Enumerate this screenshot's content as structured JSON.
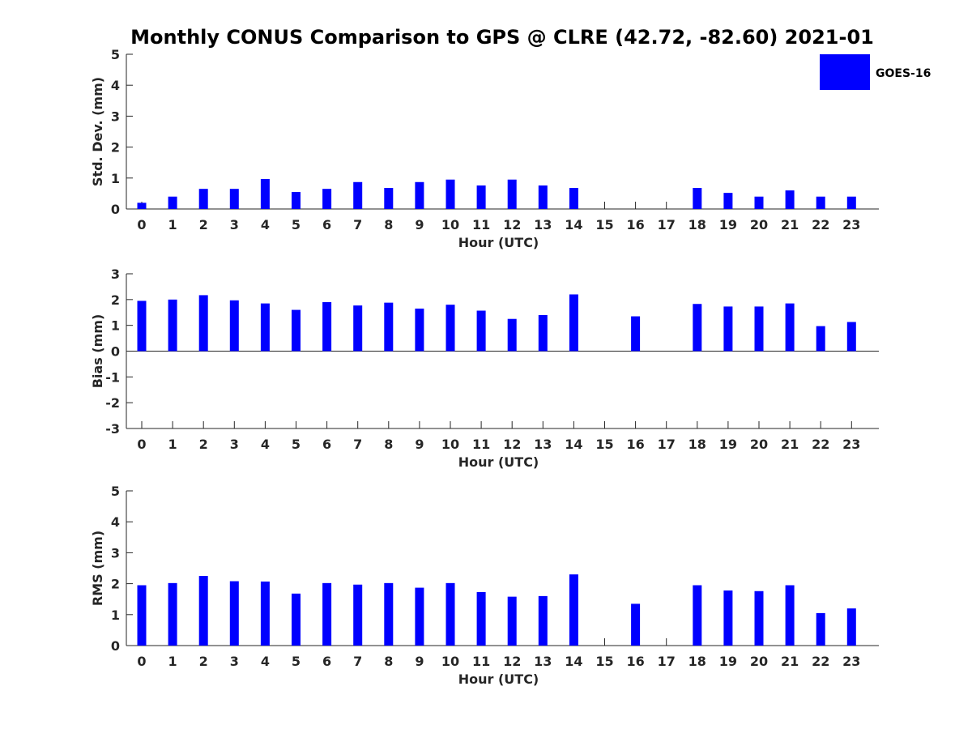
{
  "title": "Monthly CONUS Comparison to GPS @ CLRE (42.72, -82.60) 2021-01",
  "legend": {
    "label": "GOES-16",
    "color": "#0000ff",
    "position": "top-right"
  },
  "chart_data": [
    {
      "type": "bar",
      "xlabel": "Hour (UTC)",
      "ylabel": "Std. Dev. (mm)",
      "ylim": [
        0,
        5
      ],
      "yticks": [
        0,
        1,
        2,
        3,
        4,
        5
      ],
      "categories": [
        "0",
        "1",
        "2",
        "3",
        "4",
        "5",
        "6",
        "7",
        "8",
        "9",
        "10",
        "11",
        "12",
        "13",
        "14",
        "15",
        "16",
        "17",
        "18",
        "19",
        "20",
        "21",
        "22",
        "23"
      ],
      "series": [
        {
          "name": "GOES-16",
          "color": "#0000ff",
          "values": [
            0.2,
            0.4,
            0.65,
            0.65,
            0.97,
            0.55,
            0.65,
            0.87,
            0.68,
            0.87,
            0.95,
            0.76,
            0.95,
            0.76,
            0.68,
            null,
            null,
            null,
            0.68,
            0.52,
            0.4,
            0.6,
            0.4,
            0.4
          ]
        }
      ],
      "grid": false
    },
    {
      "type": "bar",
      "xlabel": "Hour (UTC)",
      "ylabel": "Bias (mm)",
      "ylim": [
        -3,
        3
      ],
      "yticks": [
        -3,
        -2,
        -1,
        0,
        1,
        2,
        3
      ],
      "categories": [
        "0",
        "1",
        "2",
        "3",
        "4",
        "5",
        "6",
        "7",
        "8",
        "9",
        "10",
        "11",
        "12",
        "13",
        "14",
        "15",
        "16",
        "17",
        "18",
        "19",
        "20",
        "21",
        "22",
        "23"
      ],
      "series": [
        {
          "name": "GOES-16",
          "color": "#0000ff",
          "values": [
            1.95,
            2.0,
            2.17,
            1.97,
            1.85,
            1.6,
            1.9,
            1.77,
            1.88,
            1.65,
            1.8,
            1.57,
            1.25,
            1.4,
            2.2,
            null,
            1.35,
            null,
            1.83,
            1.73,
            1.73,
            1.85,
            0.97,
            1.13
          ]
        }
      ],
      "grid": false
    },
    {
      "type": "bar",
      "xlabel": "Hour (UTC)",
      "ylabel": "RMS (mm)",
      "ylim": [
        0,
        5
      ],
      "yticks": [
        0,
        1,
        2,
        3,
        4,
        5
      ],
      "categories": [
        "0",
        "1",
        "2",
        "3",
        "4",
        "5",
        "6",
        "7",
        "8",
        "9",
        "10",
        "11",
        "12",
        "13",
        "14",
        "15",
        "16",
        "17",
        "18",
        "19",
        "20",
        "21",
        "22",
        "23"
      ],
      "series": [
        {
          "name": "GOES-16",
          "color": "#0000ff",
          "values": [
            1.95,
            2.02,
            2.25,
            2.08,
            2.07,
            1.68,
            2.02,
            1.97,
            2.02,
            1.87,
            2.02,
            1.73,
            1.58,
            1.6,
            2.3,
            null,
            1.35,
            null,
            1.95,
            1.78,
            1.76,
            1.95,
            1.05,
            1.2
          ]
        }
      ],
      "grid": false
    }
  ]
}
